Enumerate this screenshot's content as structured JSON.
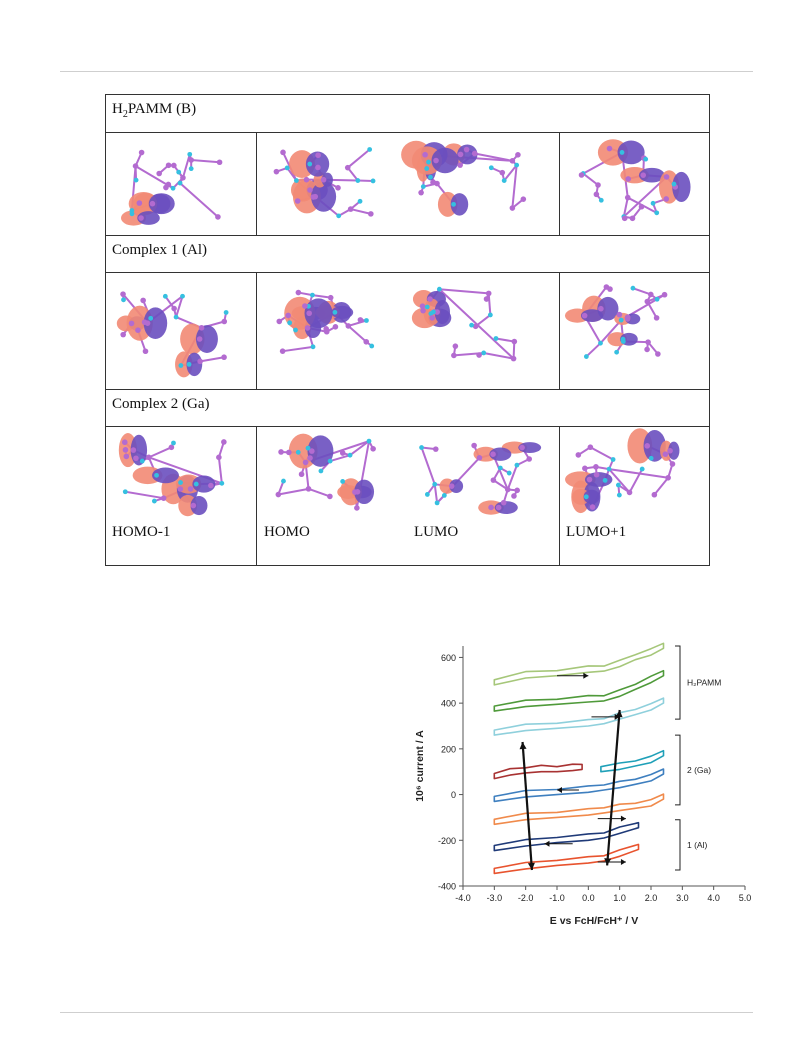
{
  "table": {
    "sections": [
      {
        "title_main": "H",
        "title_sub": "2",
        "title_rest": "PAMM (B)"
      },
      {
        "title_main": "Complex 1 (Al)",
        "title_sub": "",
        "title_rest": ""
      },
      {
        "title_main": "Complex 2 (Ga)",
        "title_sub": "",
        "title_rest": ""
      }
    ],
    "orbital_labels": [
      "HOMO-1",
      "HOMO",
      "LUMO",
      "LUMO+1"
    ],
    "colors": {
      "lobe_positive": "#f28a74",
      "lobe_negative": "#6a4fbf",
      "atom_c": "#b36bd0",
      "atom_h": "#35c0e0"
    }
  },
  "chart_data": {
    "type": "line",
    "xlabel": "E vs FcH/FcH⁺ / V",
    "ylabel": "10⁶ current / A",
    "xlim": [
      -4.0,
      5.0
    ],
    "ylim": [
      -400,
      650
    ],
    "xticks": [
      "-4.0",
      "-3.0",
      "-2.0",
      "-1.0",
      "0.0",
      "1.0",
      "2.0",
      "3.0",
      "4.0",
      "5.0"
    ],
    "yticks": [
      "-400",
      "-200",
      "0",
      "200",
      "400",
      "600"
    ],
    "group_labels": [
      "H₂PAMM",
      "2 (Ga)",
      "1 (Al)"
    ],
    "series": [
      {
        "color": "#a6c77a",
        "x": [
          -3.0,
          -2.0,
          -1.0,
          0.0,
          0.5,
          1.0,
          1.5,
          2.0,
          2.4
        ],
        "y": [
          480,
          510,
          520,
          535,
          540,
          560,
          590,
          610,
          640
        ]
      },
      {
        "color": "#4f9a3a",
        "x": [
          -3.0,
          -2.0,
          -1.0,
          0.0,
          0.5,
          1.0,
          1.5,
          2.0,
          2.4
        ],
        "y": [
          365,
          385,
          395,
          405,
          410,
          430,
          460,
          490,
          520
        ]
      },
      {
        "color": "#8fd0dc",
        "x": [
          -3.0,
          -2.0,
          -1.0,
          0.0,
          0.5,
          1.0,
          1.5,
          2.0,
          2.4
        ],
        "y": [
          260,
          280,
          290,
          300,
          310,
          330,
          350,
          370,
          400
        ]
      },
      {
        "color": "#a83232",
        "x": [
          -3.0,
          -2.5,
          -2.0,
          -1.5,
          -1.0,
          -0.5,
          -0.2
        ],
        "y": [
          70,
          85,
          95,
          100,
          100,
          105,
          110
        ]
      },
      {
        "color": "#1fa0b8",
        "x": [
          0.4,
          1.0,
          1.5,
          2.0,
          2.4
        ],
        "y": [
          100,
          110,
          125,
          140,
          170
        ]
      },
      {
        "color": "#3e7fbf",
        "x": [
          -3.0,
          -2.0,
          -1.0,
          0.0,
          0.5,
          1.0,
          1.5,
          2.0,
          2.4
        ],
        "y": [
          -30,
          -10,
          0,
          10,
          20,
          30,
          45,
          60,
          90
        ]
      },
      {
        "color": "#f08a4b",
        "x": [
          -3.0,
          -2.0,
          -1.0,
          0.0,
          0.5,
          1.0,
          1.5,
          2.0,
          2.4
        ],
        "y": [
          -130,
          -110,
          -100,
          -90,
          -80,
          -70,
          -60,
          -50,
          -20
        ]
      },
      {
        "color": "#1f3a78",
        "x": [
          -3.0,
          -2.0,
          -1.0,
          0.0,
          0.5,
          1.0,
          1.6
        ],
        "y": [
          -245,
          -225,
          -210,
          -200,
          -190,
          -170,
          -145
        ]
      },
      {
        "color": "#e8532e",
        "x": [
          -3.0,
          -2.0,
          -1.0,
          0.0,
          0.5,
          1.0,
          1.6
        ],
        "y": [
          -345,
          -325,
          -310,
          -300,
          -290,
          -270,
          -240
        ]
      }
    ],
    "grid": false,
    "legend": "right"
  }
}
